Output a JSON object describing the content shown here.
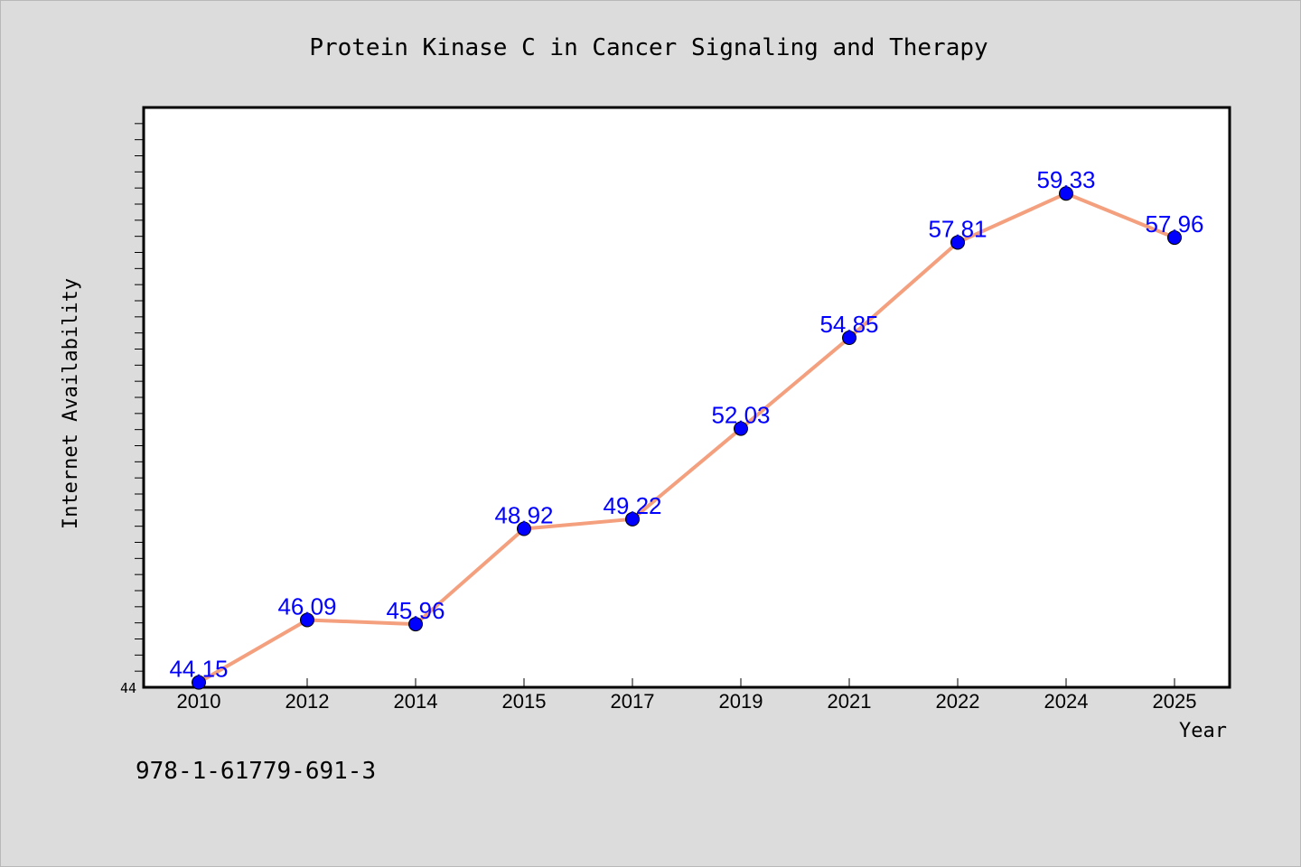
{
  "chart_data": {
    "type": "line",
    "title": "Protein Kinase C in Cancer Signaling and Therapy",
    "xlabel": "Year",
    "ylabel": "Internet Availability",
    "categories": [
      "2010",
      "2012",
      "2014",
      "2015",
      "2017",
      "2019",
      "2021",
      "2022",
      "2024",
      "2025"
    ],
    "series": [
      {
        "values": [
          44.15,
          46.09,
          45.96,
          48.92,
          49.22,
          52.03,
          54.85,
          57.81,
          59.33,
          57.96
        ],
        "labels": [
          "44.15",
          "46.09",
          "45.96",
          "48.92",
          "49.22",
          "52.03",
          "54.85",
          "57.81",
          "59.33",
          "57.96"
        ]
      }
    ],
    "ylim": [
      44,
      62
    ],
    "y_tick_labels": [
      "44"
    ],
    "grid": false,
    "line_color": "#f4a07e",
    "marker_color": "#0000ff",
    "label_color": "#0000ff"
  },
  "footer_text": "978-1-61779-691-3"
}
